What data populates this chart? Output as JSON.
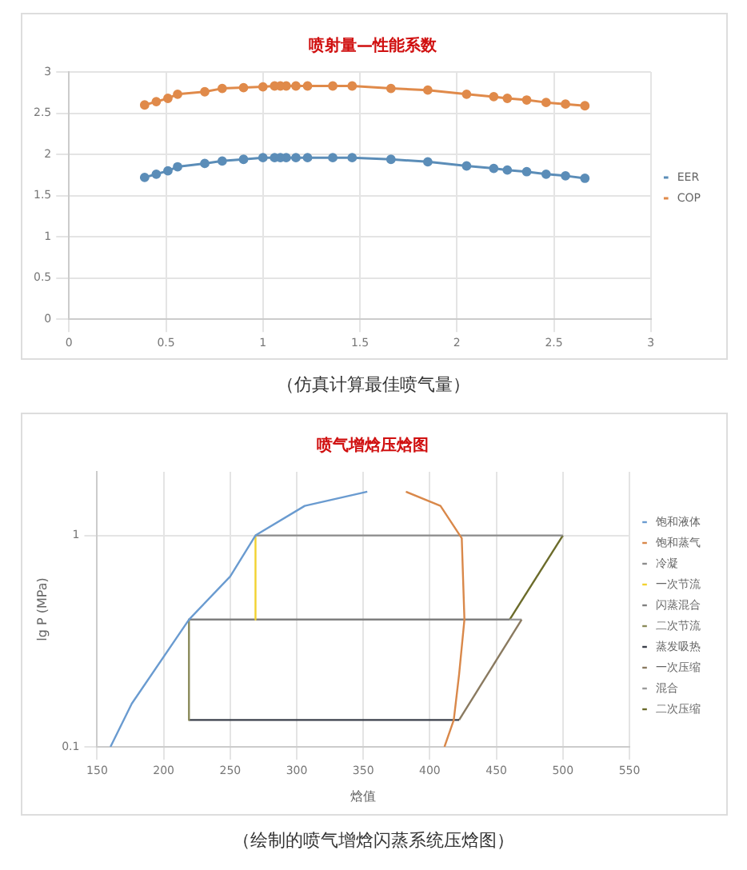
{
  "chart_data": [
    {
      "type": "line",
      "title": "喷射量—性能系数",
      "x": [
        0.39,
        0.45,
        0.51,
        0.56,
        0.7,
        0.79,
        0.9,
        1.0,
        1.06,
        1.09,
        1.12,
        1.17,
        1.23,
        1.36,
        1.46,
        1.66,
        1.85,
        2.05,
        2.19,
        2.26,
        2.36,
        2.46,
        2.56,
        2.66
      ],
      "series": [
        {
          "name": "EER",
          "color": "#5b8db8",
          "values": [
            1.72,
            1.76,
            1.8,
            1.85,
            1.89,
            1.92,
            1.94,
            1.96,
            1.96,
            1.96,
            1.96,
            1.96,
            1.96,
            1.96,
            1.96,
            1.94,
            1.91,
            1.86,
            1.83,
            1.81,
            1.79,
            1.76,
            1.74,
            1.71
          ]
        },
        {
          "name": "COP",
          "color": "#e08a4a",
          "values": [
            2.6,
            2.64,
            2.68,
            2.73,
            2.76,
            2.8,
            2.81,
            2.82,
            2.83,
            2.83,
            2.83,
            2.83,
            2.83,
            2.83,
            2.83,
            2.8,
            2.78,
            2.73,
            2.7,
            2.68,
            2.66,
            2.63,
            2.61,
            2.59
          ]
        }
      ],
      "xlim": [
        0,
        3
      ],
      "xticks": [
        0,
        0.5,
        1,
        1.5,
        2,
        2.5,
        3
      ],
      "ylim": [
        0,
        3
      ],
      "yticks": [
        0,
        0.5,
        1,
        1.5,
        2,
        2.5,
        3
      ],
      "grid": true,
      "legend": "right",
      "marker": "circle",
      "line_style": "solid",
      "annotations": [
        "（仿真计算最佳喷气量）"
      ]
    },
    {
      "type": "line",
      "title": "喷气增焓压焓图",
      "xlabel": "焓值",
      "ylabel": "lg P (MPa)",
      "log": "y",
      "series": [
        {
          "name": "饱和液体",
          "color": "#6a9bd0",
          "x": [
            160,
            176,
            219,
            250,
            269,
            306,
            353
          ],
          "values": [
            0.1,
            0.16,
            0.4,
            0.64,
            1.0,
            1.38,
            1.61
          ]
        },
        {
          "name": "饱和蒸气",
          "color": "#d9884a",
          "x": [
            382,
            408,
            424,
            426,
            422,
            418,
            411
          ],
          "values": [
            1.61,
            1.38,
            0.97,
            0.4,
            0.22,
            0.134,
            0.1
          ]
        },
        {
          "name": "冷凝",
          "color": "#8c8c8c",
          "x": [
            500,
            269
          ],
          "values": [
            1.0,
            1.0
          ]
        },
        {
          "name": "一次节流",
          "color": "#f2d230",
          "x": [
            269,
            269
          ],
          "values": [
            1.0,
            0.4
          ]
        },
        {
          "name": "闪蒸混合",
          "color": "#7f7f7f",
          "x": [
            219,
            460
          ],
          "values": [
            0.4,
            0.4
          ]
        },
        {
          "name": "二次节流",
          "color": "#8a8a5a",
          "x": [
            219,
            219
          ],
          "values": [
            0.4,
            0.134
          ]
        },
        {
          "name": "蒸发吸热",
          "color": "#3a3f4a",
          "x": [
            219,
            422
          ],
          "values": [
            0.134,
            0.134
          ]
        },
        {
          "name": "一次压缩",
          "color": "#8a7a60",
          "x": [
            422,
            469
          ],
          "values": [
            0.134,
            0.4
          ]
        },
        {
          "name": "混合",
          "color": "#9a9a9a",
          "x": [
            469,
            460
          ],
          "values": [
            0.4,
            0.4
          ]
        },
        {
          "name": "二次压缩",
          "color": "#6b6b2a",
          "x": [
            460,
            500
          ],
          "values": [
            0.4,
            1.0
          ]
        }
      ],
      "xlim": [
        150,
        550
      ],
      "xticks": [
        150,
        200,
        250,
        300,
        350,
        400,
        450,
        500,
        550
      ],
      "ylim": [
        0.1,
        2
      ],
      "yticks": [
        0.1,
        1
      ],
      "grid": true,
      "legend": "right",
      "marker": "none",
      "line_style": "solid",
      "annotations": [
        "（绘制的喷气增焓闪蒸系统压焓图）"
      ]
    }
  ]
}
